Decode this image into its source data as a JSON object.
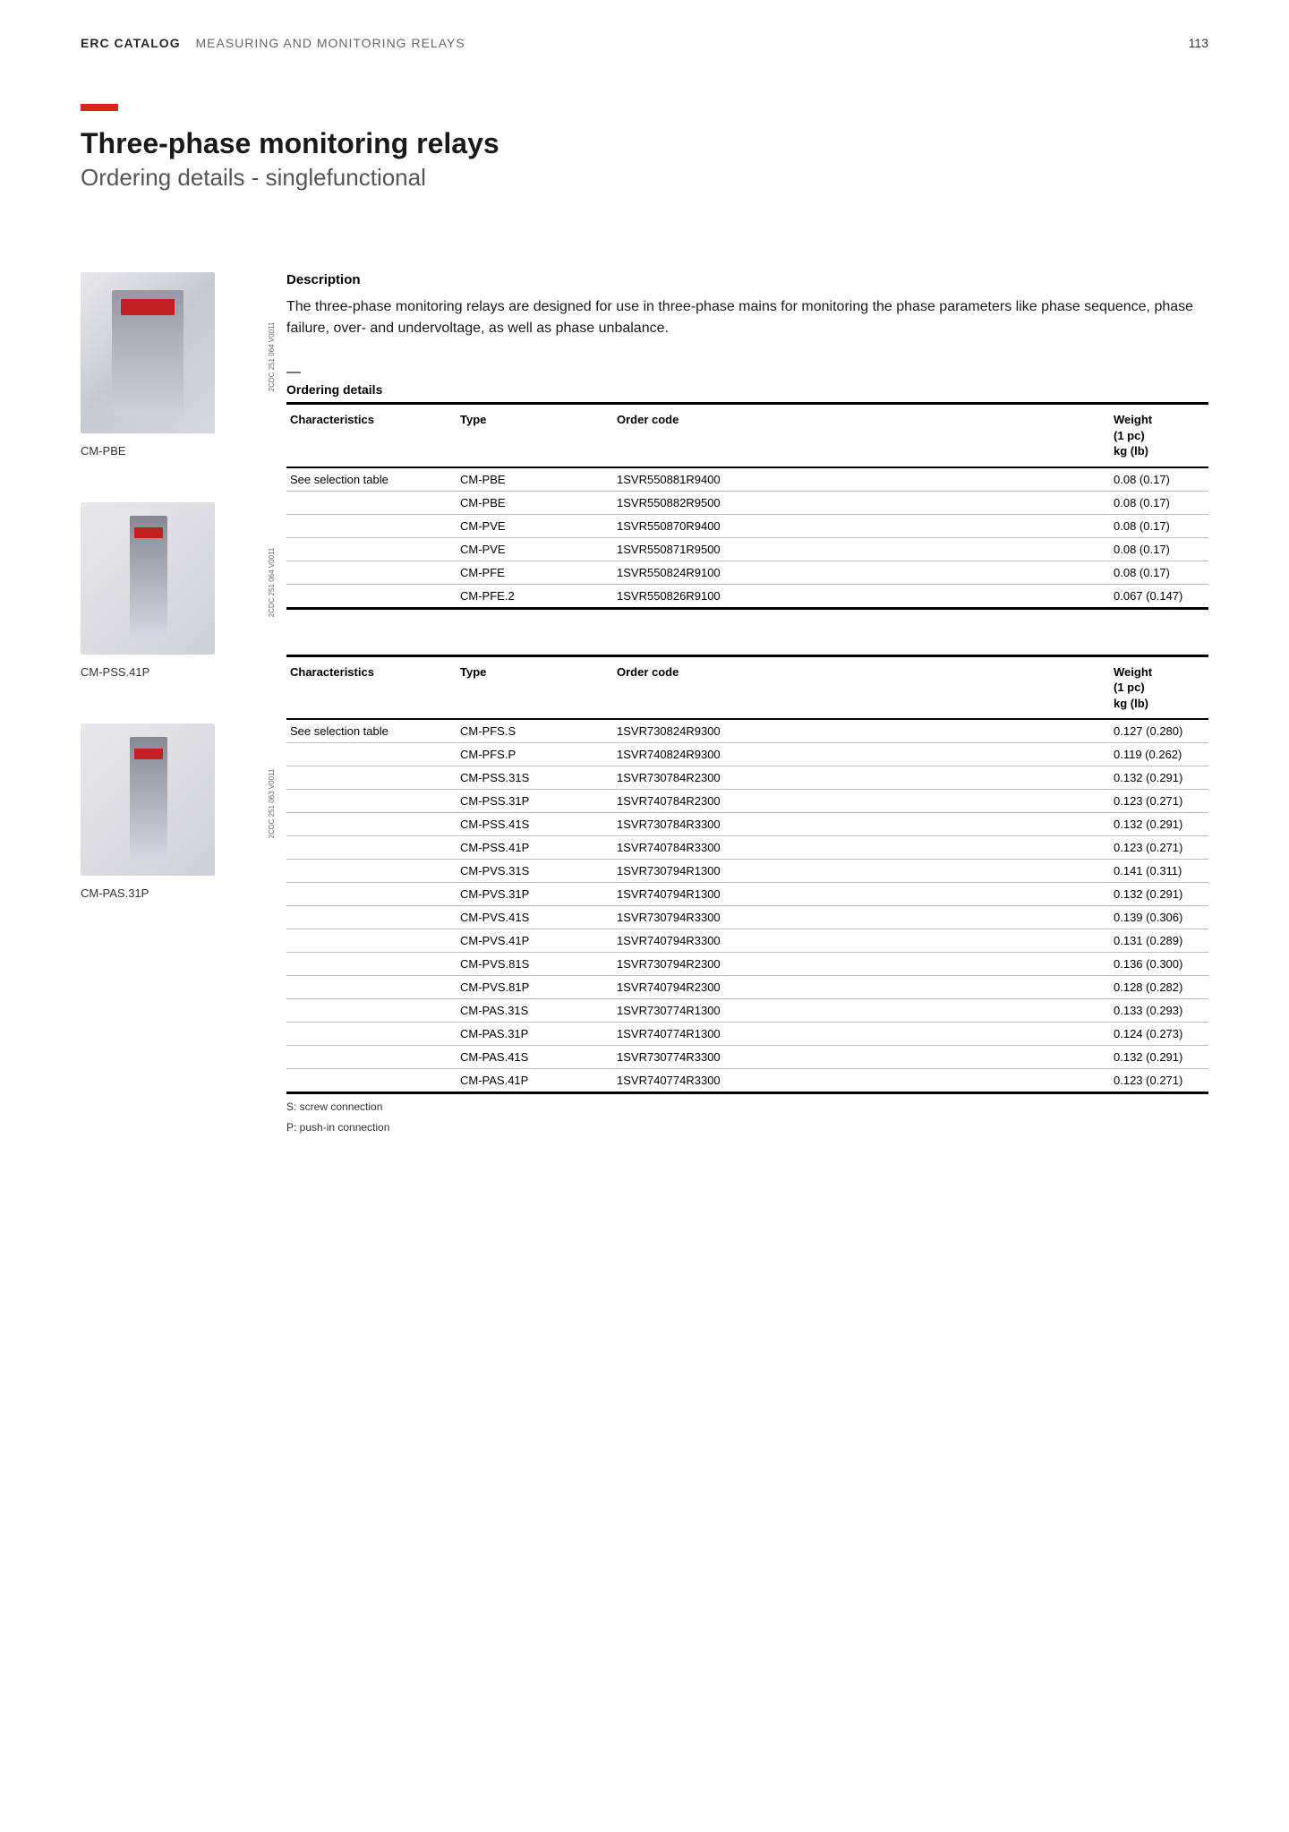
{
  "header": {
    "catalog": "ERC CATALOG",
    "section": "MEASURING AND MONITORING RELAYS",
    "page_number": "113"
  },
  "title": "Three-phase monitoring relays",
  "subtitle": "Ordering details - singlefunctional",
  "products": [
    {
      "label": "CM-PBE",
      "img_code": "2CDC 251 064 V0011"
    },
    {
      "label": "CM-PSS.41P",
      "img_code": "2CDC 251 064 V0011"
    },
    {
      "label": "CM-PAS.31P",
      "img_code": "2CDC 251 063 V0011"
    }
  ],
  "description": {
    "heading": "Description",
    "text": "The three-phase monitoring relays are designed for use in three-phase mains for monitoring the phase parameters like phase sequence, phase failure, over- and undervoltage, as well as phase unbalance."
  },
  "ordering_caption": "Ordering details",
  "table_headers": {
    "characteristics": "Characteristics",
    "type": "Type",
    "order_code": "Order code",
    "weight_line1": "Weight",
    "weight_line2": "(1 pc)",
    "weight_line3": "kg (lb)"
  },
  "table1": {
    "characteristics": "See selection table",
    "rows": [
      {
        "type": "CM-PBE",
        "code": "1SVR550881R9400",
        "weight": "0.08 (0.17)"
      },
      {
        "type": "CM-PBE",
        "code": "1SVR550882R9500",
        "weight": "0.08 (0.17)"
      },
      {
        "type": "CM-PVE",
        "code": "1SVR550870R9400",
        "weight": "0.08 (0.17)"
      },
      {
        "type": "CM-PVE",
        "code": "1SVR550871R9500",
        "weight": "0.08 (0.17)"
      },
      {
        "type": "CM-PFE",
        "code": "1SVR550824R9100",
        "weight": "0.08 (0.17)"
      },
      {
        "type": "CM-PFE.2",
        "code": "1SVR550826R9100",
        "weight": "0.067 (0.147)"
      }
    ]
  },
  "table2": {
    "characteristics": "See selection table",
    "rows": [
      {
        "type": "CM-PFS.S",
        "code": "1SVR730824R9300",
        "weight": "0.127 (0.280)"
      },
      {
        "type": "CM-PFS.P",
        "code": "1SVR740824R9300",
        "weight": "0.119 (0.262)"
      },
      {
        "type": "CM-PSS.31S",
        "code": "1SVR730784R2300",
        "weight": "0.132 (0.291)"
      },
      {
        "type": "CM-PSS.31P",
        "code": "1SVR740784R2300",
        "weight": "0.123 (0.271)"
      },
      {
        "type": "CM-PSS.41S",
        "code": "1SVR730784R3300",
        "weight": "0.132 (0.291)"
      },
      {
        "type": "CM-PSS.41P",
        "code": "1SVR740784R3300",
        "weight": "0.123 (0.271)"
      },
      {
        "type": "CM-PVS.31S",
        "code": "1SVR730794R1300",
        "weight": "0.141 (0.311)"
      },
      {
        "type": "CM-PVS.31P",
        "code": "1SVR740794R1300",
        "weight": "0.132 (0.291)"
      },
      {
        "type": "CM-PVS.41S",
        "code": "1SVR730794R3300",
        "weight": "0.139 (0.306)"
      },
      {
        "type": "CM-PVS.41P",
        "code": "1SVR740794R3300",
        "weight": "0.131 (0.289)"
      },
      {
        "type": "CM-PVS.81S",
        "code": "1SVR730794R2300",
        "weight": "0.136 (0.300)"
      },
      {
        "type": "CM-PVS.81P",
        "code": "1SVR740794R2300",
        "weight": "0.128 (0.282)"
      },
      {
        "type": "CM-PAS.31S",
        "code": "1SVR730774R1300",
        "weight": "0.133 (0.293)"
      },
      {
        "type": "CM-PAS.31P",
        "code": "1SVR740774R1300",
        "weight": "0.124 (0.273)"
      },
      {
        "type": "CM-PAS.41S",
        "code": "1SVR730774R3300",
        "weight": "0.132 (0.291)"
      },
      {
        "type": "CM-PAS.41P",
        "code": "1SVR740774R3300",
        "weight": "0.123 (0.271)"
      }
    ]
  },
  "footnotes": {
    "s": "S: screw connection",
    "p": "P: push-in connection"
  }
}
